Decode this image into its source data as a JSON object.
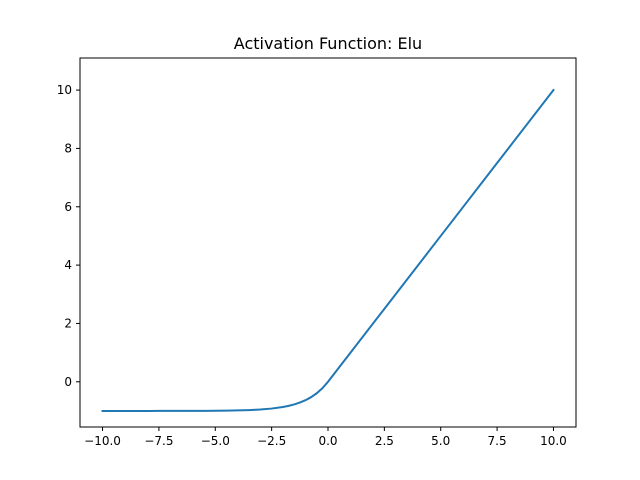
{
  "chart_data": {
    "type": "line",
    "title": "Activation Function: Elu",
    "xlabel": "",
    "ylabel": "",
    "xlim": [
      -11.0,
      11.0
    ],
    "ylim": [
      -1.55,
      11.1
    ],
    "xticks": [
      -10.0,
      -7.5,
      -5.0,
      -2.5,
      0.0,
      2.5,
      5.0,
      7.5,
      10.0
    ],
    "xtick_labels": [
      "−10.0",
      "−7.5",
      "−5.0",
      "−2.5",
      "0.0",
      "2.5",
      "5.0",
      "7.5",
      "10.0"
    ],
    "yticks": [
      0,
      2,
      4,
      6,
      8,
      10
    ],
    "ytick_labels": [
      "0",
      "2",
      "4",
      "6",
      "8",
      "10"
    ],
    "grid": false,
    "legend": "none",
    "colors": {
      "line": "#1f77b4",
      "axes": "#000000",
      "background": "#ffffff"
    },
    "series": [
      {
        "x": [
          -10.0,
          -9.5,
          -9.0,
          -8.5,
          -8.0,
          -7.5,
          -7.0,
          -6.5,
          -6.0,
          -5.5,
          -5.0,
          -4.5,
          -4.0,
          -3.5,
          -3.0,
          -2.5,
          -2.0,
          -1.75,
          -1.5,
          -1.25,
          -1.0,
          -0.75,
          -0.5,
          -0.25,
          0.0,
          2.5,
          5.0,
          7.5,
          10.0
        ],
        "y": [
          -1.0,
          -1.0,
          -1.0,
          -1.0,
          -1.0,
          -0.999,
          -0.999,
          -0.998,
          -0.998,
          -0.996,
          -0.993,
          -0.989,
          -0.982,
          -0.97,
          -0.95,
          -0.918,
          -0.865,
          -0.826,
          -0.777,
          -0.713,
          -0.632,
          -0.528,
          -0.393,
          -0.221,
          0.0,
          2.5,
          5.0,
          7.5,
          10.0
        ]
      }
    ]
  }
}
